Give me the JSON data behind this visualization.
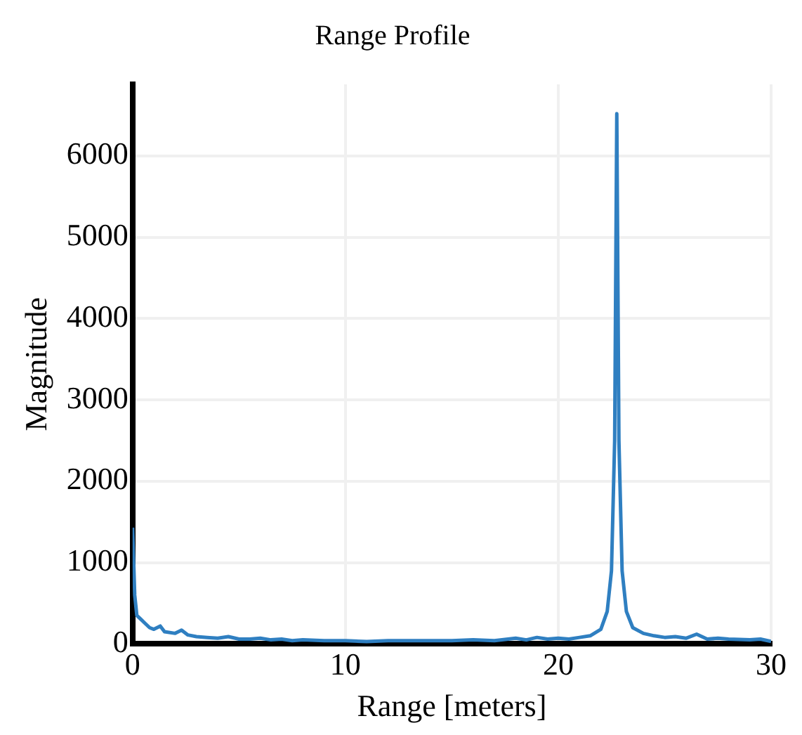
{
  "chart_data": {
    "type": "line",
    "title": "Range Profile",
    "xlabel": "Range [meters]",
    "ylabel": "Magnitude",
    "xlim": [
      0,
      30
    ],
    "xticks": [
      0,
      10,
      20,
      30
    ],
    "ylim": [
      0,
      6880
    ],
    "yticks": [
      0,
      1000,
      2000,
      3000,
      4000,
      5000,
      6000
    ],
    "grid": true,
    "legend": false,
    "marker": "none",
    "line_style": "solid",
    "series": [
      {
        "color": "#2f7fc1",
        "x": [
          0,
          0.1,
          0.2,
          0.4,
          0.6,
          0.8,
          1.0,
          1.3,
          1.5,
          2,
          2.3,
          2.6,
          3,
          3.5,
          4,
          4.5,
          5,
          5.5,
          6,
          6.5,
          7,
          7.5,
          8,
          9,
          10,
          11,
          12,
          13,
          14,
          15,
          16,
          17,
          18,
          18.5,
          19,
          19.5,
          20,
          20.5,
          21,
          21.5,
          22,
          22.3,
          22.5,
          22.65,
          22.75,
          22.85,
          23,
          23.2,
          23.5,
          24,
          24.5,
          25,
          25.5,
          26,
          26.5,
          27,
          27.5,
          28,
          29,
          29.5,
          30
        ],
        "values": [
          1430,
          600,
          350,
          300,
          250,
          200,
          180,
          220,
          150,
          130,
          170,
          110,
          90,
          80,
          70,
          90,
          60,
          60,
          70,
          50,
          60,
          40,
          50,
          40,
          40,
          30,
          40,
          40,
          40,
          40,
          50,
          40,
          70,
          50,
          80,
          60,
          70,
          60,
          80,
          100,
          180,
          400,
          900,
          2500,
          6520,
          2500,
          900,
          400,
          200,
          130,
          100,
          80,
          90,
          70,
          120,
          60,
          70,
          60,
          50,
          60,
          30
        ]
      }
    ]
  }
}
